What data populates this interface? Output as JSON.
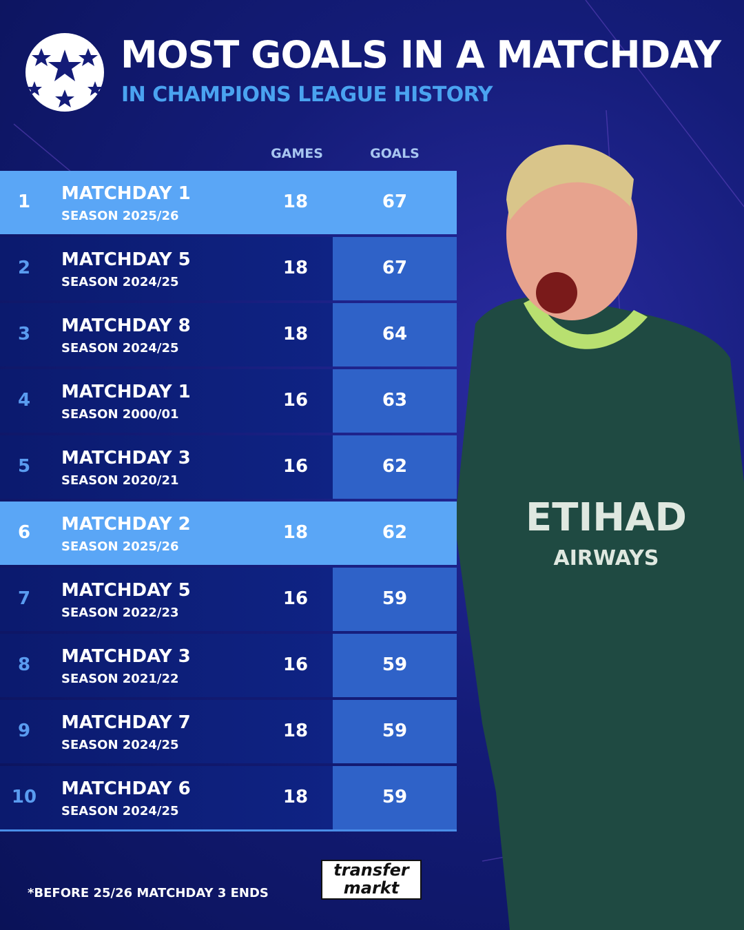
{
  "header": {
    "title": "MOST GOALS IN A MATCHDAY",
    "subtitle": "IN CHAMPIONS LEAGUE HISTORY"
  },
  "table": {
    "columns": [
      "GAMES",
      "GOALS"
    ],
    "rows": [
      {
        "rank": "1",
        "name": "MATCHDAY 1",
        "season": "SEASON 2025/26",
        "games": "18",
        "goals": "67",
        "highlighted": true
      },
      {
        "rank": "2",
        "name": "MATCHDAY 5",
        "season": "SEASON 2024/25",
        "games": "18",
        "goals": "67",
        "highlighted": false
      },
      {
        "rank": "3",
        "name": "MATCHDAY 8",
        "season": "SEASON 2024/25",
        "games": "18",
        "goals": "64",
        "highlighted": false
      },
      {
        "rank": "4",
        "name": "MATCHDAY 1",
        "season": "SEASON 2000/01",
        "games": "16",
        "goals": "63",
        "highlighted": false
      },
      {
        "rank": "5",
        "name": "MATCHDAY 3",
        "season": "SEASON 2020/21",
        "games": "16",
        "goals": "62",
        "highlighted": false
      },
      {
        "rank": "6",
        "name": "MATCHDAY 2",
        "season": "SEASON 2025/26",
        "games": "18",
        "goals": "62",
        "highlighted": true
      },
      {
        "rank": "7",
        "name": "MATCHDAY 5",
        "season": "SEASON 2022/23",
        "games": "16",
        "goals": "59",
        "highlighted": false
      },
      {
        "rank": "8",
        "name": "MATCHDAY 3",
        "season": "SEASON 2021/22",
        "games": "16",
        "goals": "59",
        "highlighted": false
      },
      {
        "rank": "9",
        "name": "MATCHDAY 7",
        "season": "SEASON 2024/25",
        "games": "18",
        "goals": "59",
        "highlighted": false
      },
      {
        "rank": "10",
        "name": "MATCHDAY 6",
        "season": "SEASON 2024/25",
        "games": "18",
        "goals": "59",
        "highlighted": false
      }
    ]
  },
  "footnote": "*BEFORE 25/26 MATCHDAY 3 ENDS",
  "logo": {
    "line1": "transfer",
    "line2": "markt"
  }
}
